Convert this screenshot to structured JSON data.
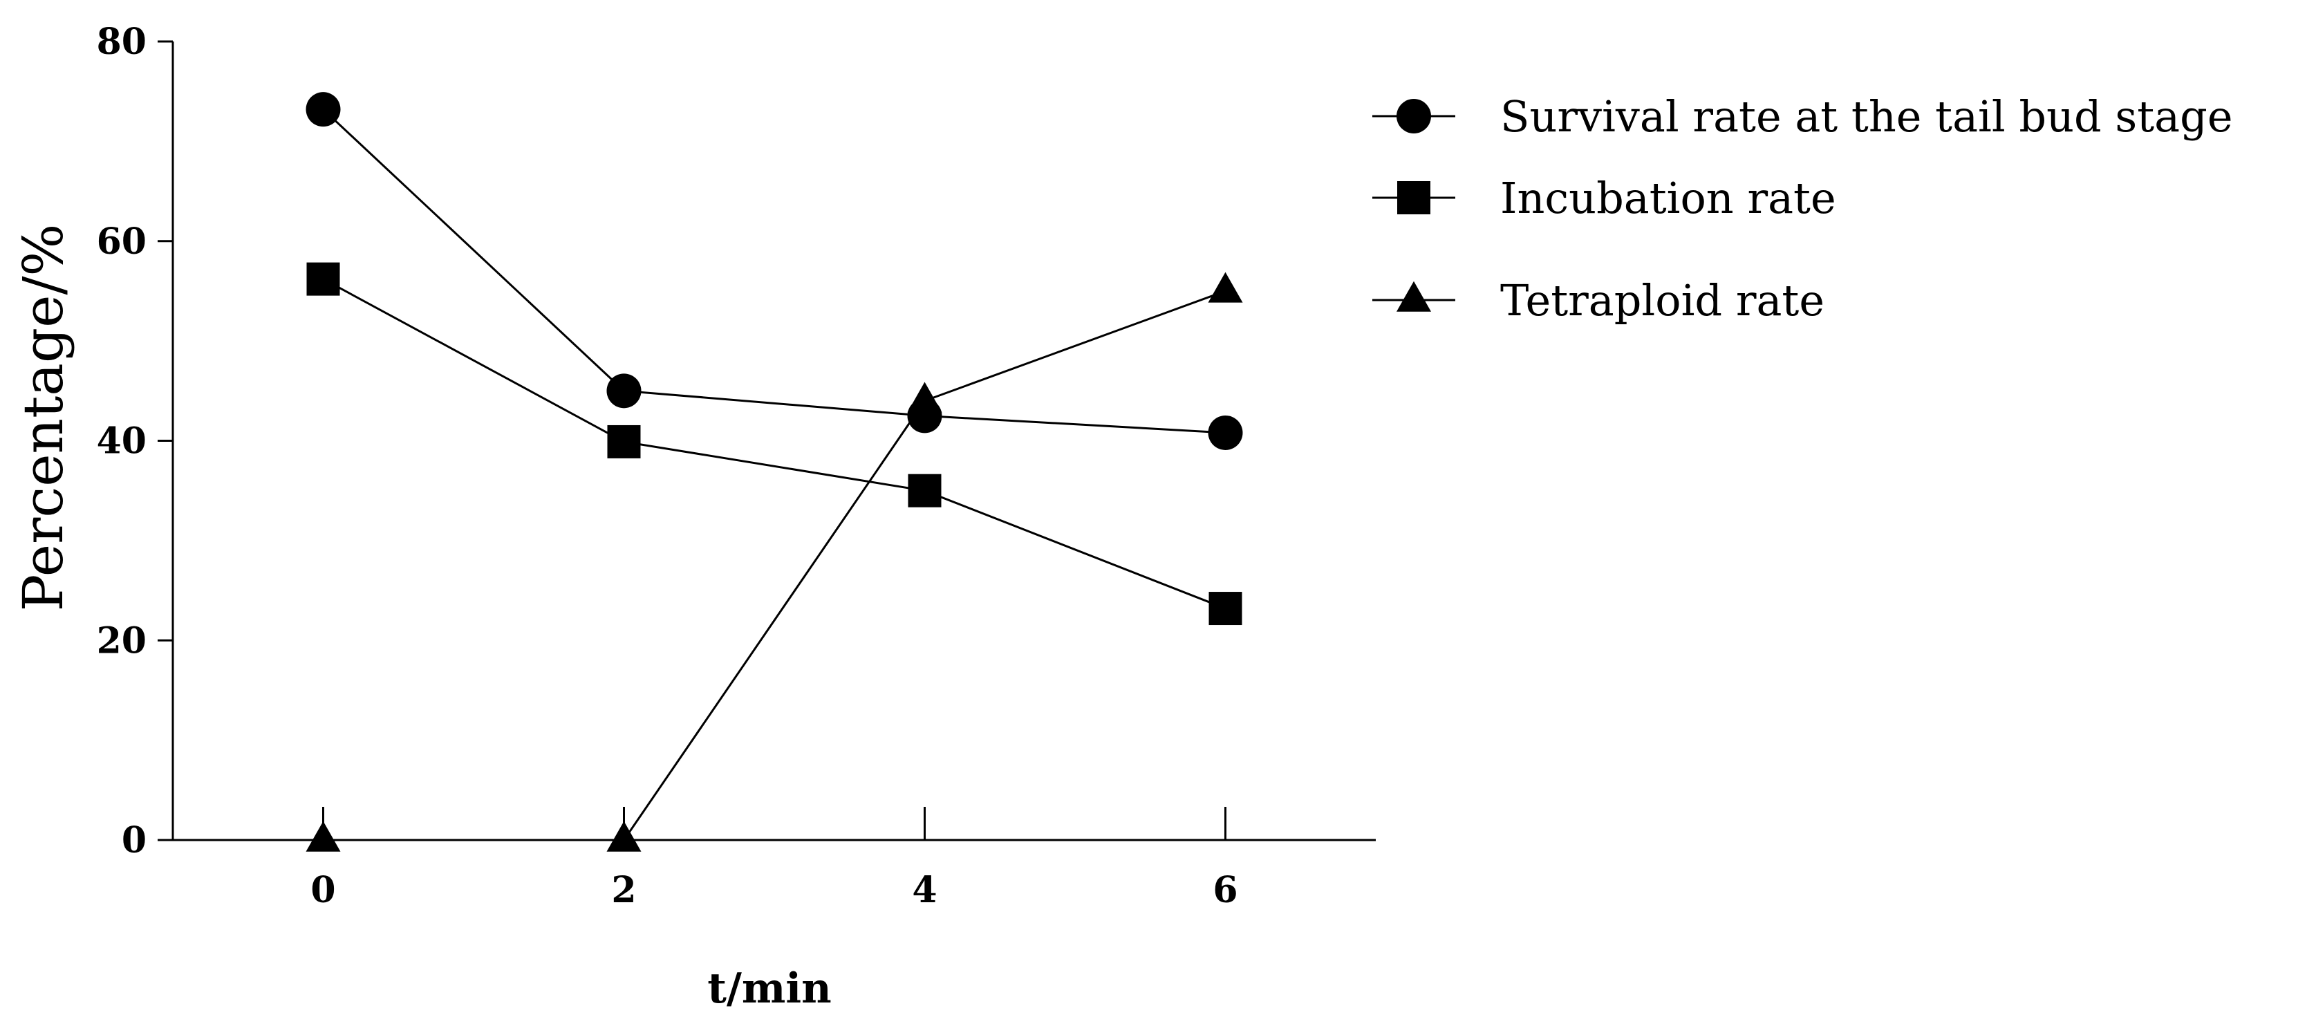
{
  "chart_data": {
    "type": "line",
    "xlabel": "t/min",
    "ylabel": "Percentage/%",
    "x": [
      0,
      2,
      4,
      6
    ],
    "x_ticks": [
      "0",
      "2",
      "4",
      "6"
    ],
    "y_ticks": [
      "0",
      "20",
      "40",
      "60",
      "80"
    ],
    "xlim": [
      -1,
      7
    ],
    "ylim": [
      0,
      80
    ],
    "grid": false,
    "legend_position": "right",
    "series": [
      {
        "name": "Survival rate at the tail bud stage",
        "marker": "circle",
        "values": [
          73.2,
          45.0,
          42.5,
          40.8
        ]
      },
      {
        "name": "Incubation rate",
        "marker": "square",
        "values": [
          56.2,
          39.9,
          35.0,
          23.2
        ]
      },
      {
        "name": "Tetraploid rate",
        "marker": "triangle",
        "values": [
          0,
          0,
          44.0,
          55.0
        ]
      }
    ],
    "colors": {
      "line": "#000000",
      "marker": "#000000"
    }
  }
}
